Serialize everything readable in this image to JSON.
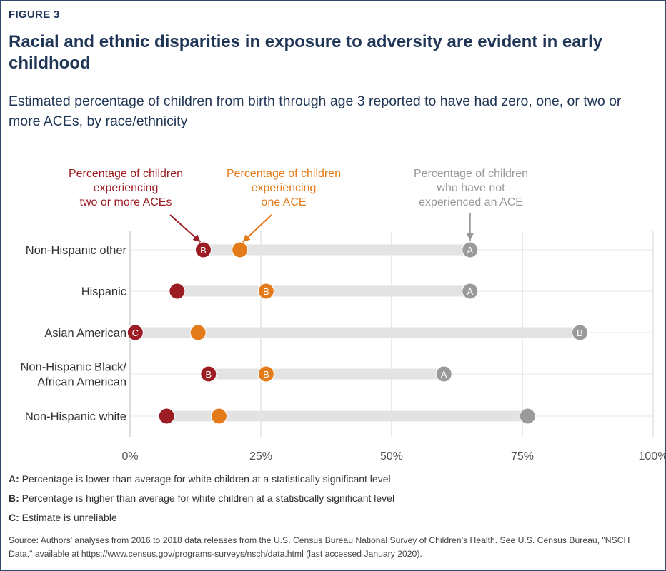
{
  "figure_label": "FIGURE 3",
  "title": "Racial and ethnic disparities in exposure to adversity are evident in early childhood",
  "subtitle": "Estimated percentage of children from birth through age 3 reported to have had zero, one, or two or more ACEs, by race/ethnicity",
  "colors": {
    "two_plus": "#9b1c23",
    "one": "#e37b1a",
    "none": "#9a9a9a",
    "bar": "#e3e3e3",
    "title": "#1f3556"
  },
  "chart_data": {
    "type": "scatter",
    "categories": [
      "Non-Hispanic other",
      "Hispanic",
      "Asian American",
      "Non-Hispanic Black/ African American",
      "Non-Hispanic white"
    ],
    "category_lines": [
      [
        "Non-Hispanic other"
      ],
      [
        "Hispanic"
      ],
      [
        "Asian American"
      ],
      [
        "Non-Hispanic Black/",
        "African American"
      ],
      [
        "Non-Hispanic white"
      ]
    ],
    "series": [
      {
        "name": "Percentage of children experiencing two or more ACEs",
        "label_lines": [
          "Percentage of children",
          "experiencing",
          "two or more ACEs"
        ],
        "color_key": "two_plus",
        "values": [
          14,
          9,
          1,
          15,
          7
        ],
        "markers": [
          "B",
          "",
          "C",
          "B",
          ""
        ]
      },
      {
        "name": "Percentage of children experiencing one ACE",
        "label_lines": [
          "Percentage of children",
          "experiencing",
          "one ACE"
        ],
        "color_key": "one",
        "values": [
          21,
          26,
          13,
          26,
          17
        ],
        "markers": [
          "",
          "B",
          "",
          "B",
          ""
        ]
      },
      {
        "name": "Percentage of children who have not experienced an ACE",
        "label_lines": [
          "Percentage of children",
          "who have not",
          "experienced an ACE"
        ],
        "color_key": "none",
        "values": [
          65,
          65,
          86,
          60,
          76
        ],
        "markers": [
          "A",
          "A",
          "B",
          "A",
          ""
        ]
      }
    ],
    "xlim": [
      0,
      100
    ],
    "xticks": [
      "0%",
      "25%",
      "50%",
      "75%",
      "100%"
    ],
    "xtick_values": [
      0,
      25,
      50,
      75,
      100
    ]
  },
  "notes": [
    {
      "key": "A:",
      "text": " Percentage is lower than average for white children at a statistically significant level"
    },
    {
      "key": "B:",
      "text": " Percentage is higher than average for white children at a statistically significant level"
    },
    {
      "key": "C:",
      "text": " Estimate is unreliable"
    }
  ],
  "source": "Source: Authors' analyses from 2016 to 2018 data releases from the U.S. Census Bureau National Survey of Children's Health. See U.S. Census Bureau, \"NSCH Data,\" available at https://www.census.gov/programs-surveys/nsch/data.html (last accessed January 2020)."
}
